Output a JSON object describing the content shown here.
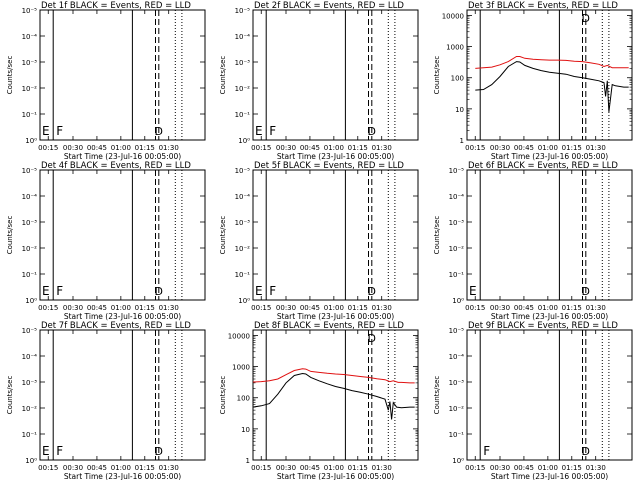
{
  "chart_data": [
    {
      "type": "line",
      "title": "Det 1f BLACK = Events, RED = LLD",
      "ylabel": "Counts/sec",
      "xlabel": "Start Time (23-Jul-16 00:05:00)",
      "x_ticks": [
        "00:15",
        "00:30",
        "00:45",
        "01:00",
        "01:15",
        "01:30"
      ],
      "y_ticks": [
        "10⁰",
        "10⁻¹",
        "10⁻²",
        "10⁻³",
        "10⁻⁴",
        "10⁻⁵"
      ],
      "ylim": [
        0,
        5
      ],
      "log_scale": false,
      "markers": {
        "F": "F",
        "D": "D",
        "E": "E"
      },
      "series": []
    },
    {
      "type": "line",
      "title": "Det 2f BLACK = Events, RED = LLD",
      "ylabel": "Counts/sec",
      "xlabel": "Start Time (23-Jul-16 00:05:00)",
      "x_ticks": [
        "00:15",
        "00:30",
        "00:45",
        "01:00",
        "01:15",
        "01:30"
      ],
      "y_ticks": [
        "10⁰",
        "10⁻¹",
        "10⁻²",
        "10⁻³",
        "10⁻⁴",
        "10⁻⁵"
      ],
      "ylim": [
        0,
        5
      ],
      "log_scale": false,
      "markers": {
        "F": "F",
        "D": "D",
        "E": "E"
      },
      "series": []
    },
    {
      "type": "line",
      "title": "Det 3f BLACK = Events, RED = LLD",
      "ylabel": "Counts/sec",
      "xlabel": "Start Time (23-Jul-16 00:05:00)",
      "x_ticks": [
        "00:15",
        "00:30",
        "00:45",
        "01:00",
        "01:15",
        "01:30"
      ],
      "y_ticks": [
        "1",
        "10",
        "100",
        "1000",
        "10000"
      ],
      "ylim": [
        1,
        15000
      ],
      "log_scale": true,
      "markers": {
        "F": "",
        "D": "D",
        "E": ""
      },
      "series": [
        {
          "color": "#e01010",
          "x": [
            5,
            10,
            15,
            20,
            25,
            30,
            32,
            35,
            40,
            45,
            50,
            55,
            60,
            65,
            70,
            75,
            80,
            83,
            85,
            88,
            90,
            95,
            98
          ],
          "y": [
            200,
            210,
            220,
            260,
            330,
            480,
            480,
            420,
            390,
            380,
            370,
            370,
            360,
            340,
            330,
            300,
            270,
            230,
            250,
            210,
            210,
            210,
            210
          ]
        },
        {
          "color": "#000000",
          "x": [
            5,
            10,
            15,
            20,
            25,
            30,
            32,
            35,
            40,
            45,
            50,
            55,
            60,
            65,
            70,
            75,
            80,
            83,
            84,
            85,
            86,
            88,
            90,
            95,
            98
          ],
          "y": [
            40,
            42,
            60,
            110,
            230,
            330,
            320,
            250,
            200,
            170,
            150,
            140,
            130,
            110,
            100,
            90,
            80,
            70,
            25,
            80,
            8,
            60,
            55,
            50,
            50
          ]
        }
      ]
    },
    {
      "type": "line",
      "title": "Det 4f BLACK = Events, RED = LLD",
      "ylabel": "Counts/sec",
      "xlabel": "Start Time (23-Jul-16 00:05:00)",
      "x_ticks": [
        "00:15",
        "00:30",
        "00:45",
        "01:00",
        "01:15",
        "01:30"
      ],
      "y_ticks": [
        "10⁰",
        "10⁻¹",
        "10⁻²",
        "10⁻³",
        "10⁻⁴",
        "10⁻⁵"
      ],
      "ylim": [
        0,
        5
      ],
      "log_scale": false,
      "markers": {
        "F": "F",
        "D": "D",
        "E": "E"
      },
      "series": []
    },
    {
      "type": "line",
      "title": "Det 5f BLACK = Events, RED = LLD",
      "ylabel": "Counts/sec",
      "xlabel": "Start Time (23-Jul-16 00:05:00)",
      "x_ticks": [
        "00:15",
        "00:30",
        "00:45",
        "01:00",
        "01:15",
        "01:30"
      ],
      "y_ticks": [
        "10⁰",
        "10⁻¹",
        "10⁻²",
        "10⁻³",
        "10⁻⁴",
        "10⁻⁵"
      ],
      "ylim": [
        0,
        5
      ],
      "log_scale": false,
      "markers": {
        "F": "F",
        "D": "D",
        "E": "E"
      },
      "series": []
    },
    {
      "type": "line",
      "title": "Det 6f BLACK = Events, RED = LLD",
      "ylabel": "Counts/sec",
      "xlabel": "Start Time (23-Jul-16 00:05:00)",
      "x_ticks": [
        "00:15",
        "00:30",
        "00:45",
        "01:00",
        "01:15",
        "01:30"
      ],
      "y_ticks": [
        "10⁰",
        "10⁻¹",
        "10⁻²",
        "10⁻³",
        "10⁻⁴",
        "10⁻⁵"
      ],
      "ylim": [
        0,
        5
      ],
      "log_scale": false,
      "markers": {
        "F": "",
        "D": "D",
        "E": "E"
      },
      "series": []
    },
    {
      "type": "line",
      "title": "Det 7f BLACK = Events, RED = LLD",
      "ylabel": "Counts/sec",
      "xlabel": "Start Time (23-Jul-16 00:05:00)",
      "x_ticks": [
        "00:15",
        "00:30",
        "00:45",
        "01:00",
        "01:15",
        "01:30"
      ],
      "y_ticks": [
        "10⁰",
        "10⁻¹",
        "10⁻²",
        "10⁻³",
        "10⁻⁴",
        "10⁻⁵"
      ],
      "ylim": [
        0,
        5
      ],
      "log_scale": false,
      "markers": {
        "F": "F",
        "D": "D",
        "E": "E"
      },
      "series": []
    },
    {
      "type": "line",
      "title": "Det 8f BLACK = Events, RED = LLD",
      "ylabel": "Counts/sec",
      "xlabel": "Start Time (23-Jul-16 00:05:00)",
      "x_ticks": [
        "00:15",
        "00:30",
        "00:45",
        "01:00",
        "01:15",
        "01:30"
      ],
      "y_ticks": [
        "1",
        "10",
        "100",
        "1000",
        "10000"
      ],
      "ylim": [
        1,
        15000
      ],
      "log_scale": true,
      "markers": {
        "F": "",
        "D": "D",
        "E": ""
      },
      "series": [
        {
          "color": "#e01010",
          "x": [
            0,
            5,
            10,
            15,
            20,
            25,
            30,
            32,
            35,
            40,
            45,
            50,
            55,
            60,
            65,
            70,
            75,
            80,
            83,
            85,
            88,
            90,
            95,
            98
          ],
          "y": [
            320,
            330,
            350,
            400,
            550,
            750,
            850,
            830,
            700,
            650,
            610,
            580,
            560,
            520,
            480,
            450,
            410,
            380,
            330,
            350,
            310,
            310,
            300,
            300
          ]
        },
        {
          "color": "#000000",
          "x": [
            0,
            5,
            10,
            15,
            20,
            25,
            30,
            32,
            35,
            40,
            45,
            50,
            55,
            60,
            65,
            70,
            75,
            80,
            82,
            83,
            84,
            85,
            87,
            90,
            95,
            98
          ],
          "y": [
            50,
            55,
            65,
            130,
            300,
            520,
            600,
            580,
            450,
            350,
            280,
            230,
            200,
            170,
            150,
            130,
            110,
            90,
            40,
            75,
            20,
            70,
            50,
            48,
            50,
            50
          ]
        }
      ]
    },
    {
      "type": "line",
      "title": "Det 9f BLACK = Events, RED = LLD",
      "ylabel": "Counts/sec",
      "xlabel": "Start Time (23-Jul-16 00:05:00)",
      "x_ticks": [
        "00:15",
        "00:30",
        "00:45",
        "01:00",
        "01:15",
        "01:30"
      ],
      "y_ticks": [
        "10⁰",
        "10⁻¹",
        "10⁻²",
        "10⁻³",
        "10⁻⁴",
        "10⁻⁵"
      ],
      "ylim": [
        0,
        5
      ],
      "log_scale": false,
      "markers": {
        "F": "F",
        "D": "D",
        "E": ""
      },
      "series": []
    }
  ]
}
